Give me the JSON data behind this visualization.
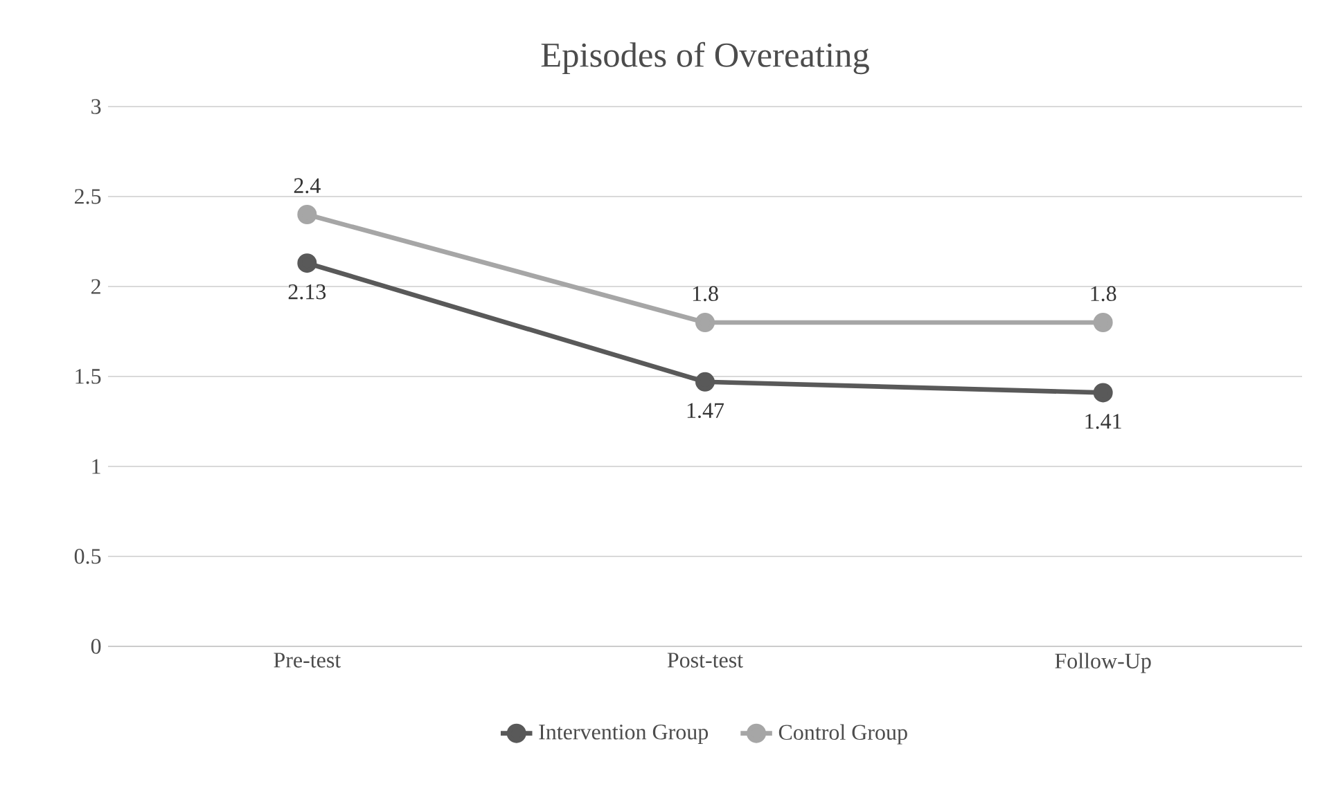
{
  "chart_data": {
    "type": "line",
    "title": "Episodes of Overeating",
    "categories": [
      "Pre-test",
      "Post-test",
      "Follow-Up"
    ],
    "series": [
      {
        "name": "Intervention Group",
        "color": "#595959",
        "values": [
          2.13,
          1.47,
          1.41
        ]
      },
      {
        "name": "Control Group",
        "color": "#a6a6a6",
        "values": [
          2.4,
          1.8,
          1.8
        ]
      }
    ],
    "ylim": [
      0,
      3
    ],
    "yticks": [
      0,
      0.5,
      1,
      1.5,
      2,
      2.5,
      3
    ],
    "grid": "y",
    "legend": "bottom",
    "marker": "circle",
    "line_style": "solid",
    "data_labels": true
  }
}
